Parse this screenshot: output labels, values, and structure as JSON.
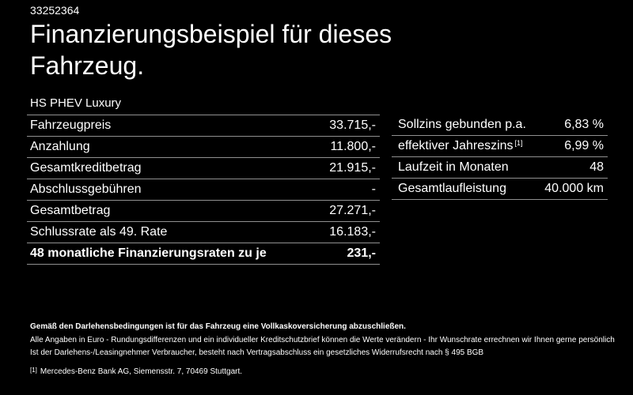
{
  "page": {
    "vehicle_id": "33252364",
    "title": "Finanzierungsbeispiel für dieses Fahrzeug.",
    "model": "HS PHEV Luxury"
  },
  "finance_table": {
    "rows": [
      {
        "label": "Fahrzeugpreis",
        "value": "33.715,-"
      },
      {
        "label": "Anzahlung",
        "value": "11.800,-"
      },
      {
        "label": "Gesamtkreditbetrag",
        "value": "21.915,-"
      },
      {
        "label": "Abschlussgebühren",
        "value": "-"
      },
      {
        "label": "Gesamtbetrag",
        "value": "27.271,-"
      },
      {
        "label": "Schlussrate als 49. Rate",
        "value": "16.183,-"
      },
      {
        "label": "48 monatliche Finanzierungsraten zu je",
        "value": "231,-"
      }
    ]
  },
  "conditions_table": {
    "rows": [
      {
        "label": "Sollzins gebunden p.a.",
        "value": "6,83 %"
      },
      {
        "label": "effektiver Jahreszins",
        "sup": "[1]",
        "value": "6,99 %"
      },
      {
        "label": "Laufzeit in Monaten",
        "value": "48"
      },
      {
        "label": "Gesamtlaufleistung",
        "value": "40.000 km"
      }
    ]
  },
  "footer": {
    "insurance_note": "Gemäß den Darlehensbedingungen ist für das Fahrzeug eine Vollkaskoversicherung abzuschließen.",
    "note_line1": "Alle Angaben in Euro - Rundungsdifferenzen und ein individueller Kreditschutzbrief können die Werte verändern - Ihr Wunschrate errechnen wir Ihnen gerne persönlich",
    "note_line2": "Ist der Darlehens-/Leasingnehmer Verbraucher, besteht nach Vertragsabschluss ein gesetzliches Widerrufsrecht nach § 495 BGB",
    "footnote_marker": "[1]",
    "footnote_text": "Mercedes-Benz Bank AG, Siemensstr. 7, 70469 Stuttgart."
  },
  "colors": {
    "background": "#000000",
    "text": "#ffffff",
    "divider": "#909090"
  }
}
